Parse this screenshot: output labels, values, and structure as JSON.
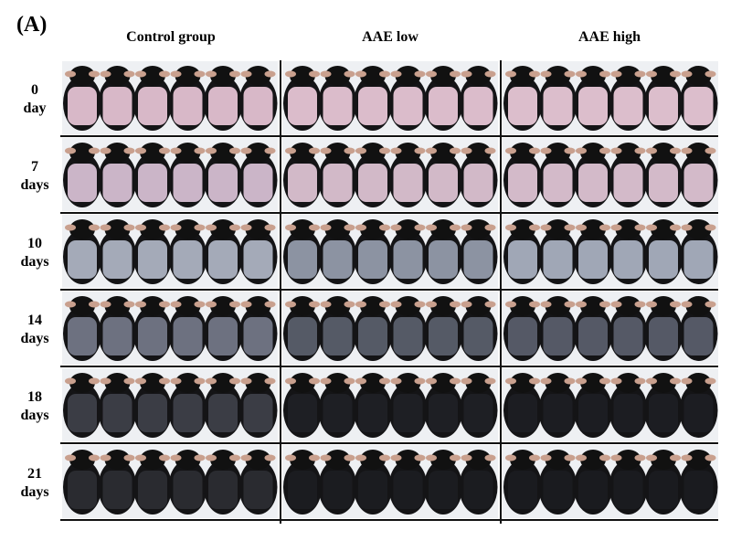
{
  "panel_label": "(A)",
  "columns": [
    "Control group",
    "AAE low",
    "AAE high"
  ],
  "rows": [
    {
      "label_top": "0",
      "label_bottom": "day",
      "patch_colors": [
        "#d8b8c8",
        "#dbbccb",
        "#dcbecc"
      ]
    },
    {
      "label_top": "7",
      "label_bottom": "days",
      "patch_colors": [
        "#cbb5c8",
        "#d2b9c8",
        "#d3bac9"
      ]
    },
    {
      "label_top": "10",
      "label_bottom": "days",
      "patch_colors": [
        "#a4aab8",
        "#8c93a2",
        "#a0a7b6"
      ]
    },
    {
      "label_top": "14",
      "label_bottom": "days",
      "patch_colors": [
        "#6d7180",
        "#555a66",
        "#555966"
      ]
    },
    {
      "label_top": "18",
      "label_bottom": "days",
      "patch_colors": [
        "#3b3d45",
        "#1e1f24",
        "#1c1d22"
      ]
    },
    {
      "label_top": "21",
      "label_bottom": "days",
      "patch_colors": [
        "#2a2b30",
        "#1b1c20",
        "#1a1b1f"
      ]
    }
  ]
}
